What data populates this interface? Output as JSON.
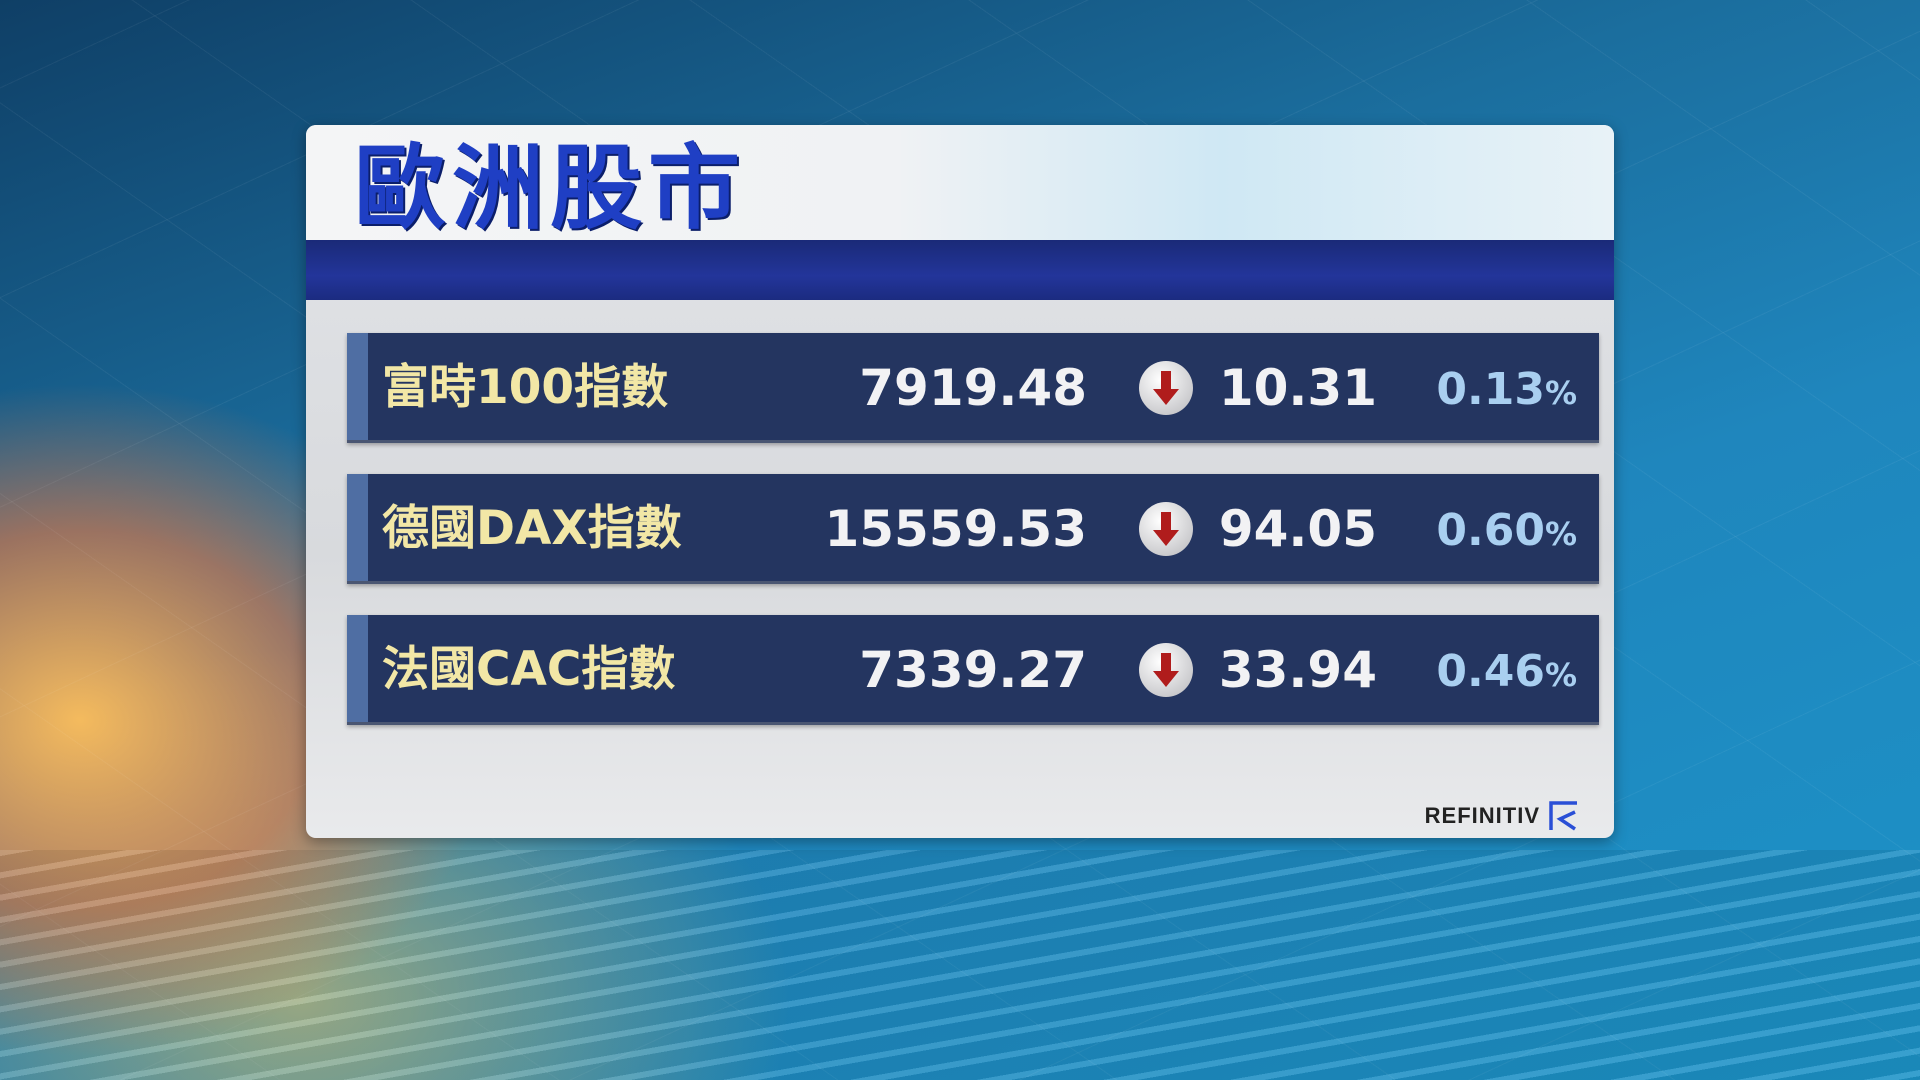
{
  "title": "歐洲股市",
  "colors": {
    "title": "#1f3fc4",
    "row_bg": "#243560",
    "label": "#f2e7a6",
    "percent": "#a9cff0",
    "down_arrow": "#b01c1c"
  },
  "rows": [
    {
      "label": "富時100指數",
      "value": "7919.48",
      "direction": "down",
      "direction_icon": "down-arrow-icon",
      "change": "10.31",
      "percent": "0.13",
      "percent_sign": "%"
    },
    {
      "label": "德國DAX指數",
      "value": "15559.53",
      "direction": "down",
      "direction_icon": "down-arrow-icon",
      "change": "94.05",
      "percent": "0.60",
      "percent_sign": "%"
    },
    {
      "label": "法國CAC指數",
      "value": "7339.27",
      "direction": "down",
      "direction_icon": "down-arrow-icon",
      "change": "33.94",
      "percent": "0.46",
      "percent_sign": "%"
    }
  ],
  "source_logo": "REFINITIV"
}
